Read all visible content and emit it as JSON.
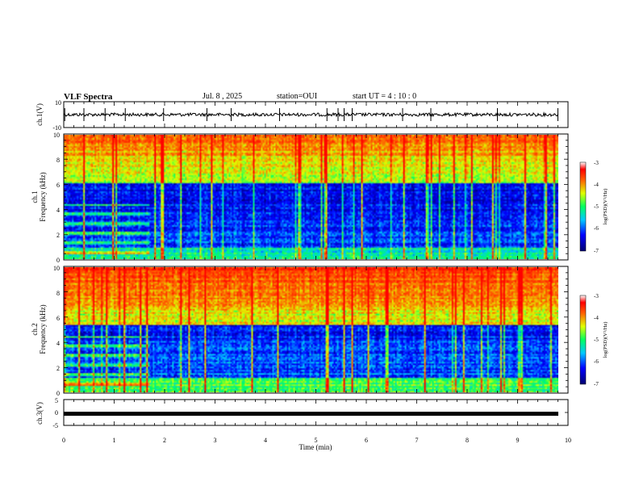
{
  "header": {
    "title": "VLF Spectra",
    "date": "Jul. 8 , 2025",
    "station": "station=OUI",
    "start": "start UT = 4 : 10 : 0"
  },
  "chart_data": [
    {
      "type": "line",
      "ylabel": "ch.1(V)",
      "ylim": [
        -10,
        10
      ],
      "yticks": [
        "10",
        "-10"
      ],
      "xlim": [
        0,
        10
      ],
      "trace_baseline": 0,
      "spikes_at_min": [
        0.02,
        0.4,
        0.82,
        1.22,
        1.98,
        2.84,
        3.32,
        4.28,
        5.22,
        5.44,
        5.56,
        5.72,
        6.72,
        7.28,
        8.6,
        9.8
      ]
    },
    {
      "type": "heatmap",
      "ylabel": "ch.1\nFrequency (kHz)",
      "ylim": [
        0,
        10
      ],
      "yticks": [
        "0",
        "2",
        "4",
        "6",
        "8",
        "10"
      ],
      "xlim": [
        0,
        9.8
      ],
      "colorbar": {
        "label": "log(PSD)(V²/Hz)",
        "ticks": [
          "-3",
          "-4",
          "-5",
          "-6",
          "-7"
        ],
        "range": [
          -7,
          -3
        ]
      }
    },
    {
      "type": "heatmap",
      "ylabel": "ch.2\nFrequency (kHz)",
      "ylim": [
        0,
        10
      ],
      "yticks": [
        "0",
        "2",
        "4",
        "6",
        "8",
        "10"
      ],
      "xlim": [
        0,
        9.8
      ],
      "colorbar": {
        "label": "log(PSD)(V²/Hz)",
        "ticks": [
          "-3",
          "-4",
          "-5",
          "-6",
          "-7"
        ],
        "range": [
          -7,
          -3
        ]
      }
    },
    {
      "type": "line",
      "ylabel": "ch.3(V)",
      "ylim": [
        -5,
        5
      ],
      "yticks": [
        "5",
        "0",
        "-5"
      ],
      "xlim": [
        0,
        9.8
      ],
      "constant_value": -0.5
    }
  ],
  "xaxis": {
    "label": "Time (min)",
    "ticks": [
      "0",
      "1",
      "2",
      "3",
      "4",
      "5",
      "6",
      "7",
      "8",
      "9",
      "10"
    ],
    "range": [
      0,
      10
    ]
  }
}
